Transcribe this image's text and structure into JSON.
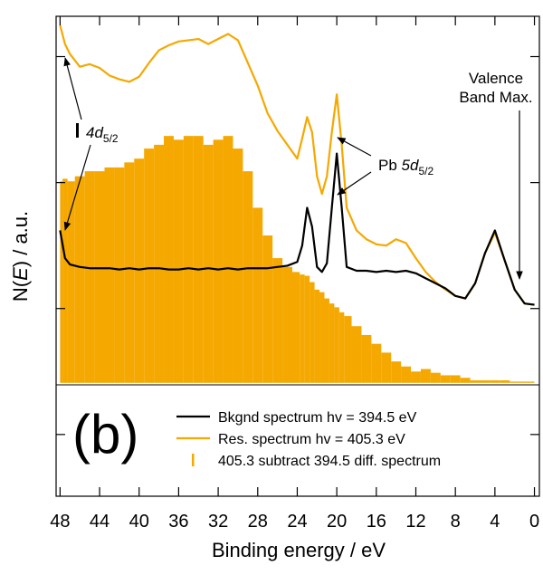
{
  "chart_data": {
    "type": "line",
    "xlabel": "Binding energy / eV",
    "ylabel": {
      "before": "N(",
      "italic": "E",
      "after": ") / a.u."
    },
    "panel_label": "(b)",
    "annotations": {
      "vbm": {
        "line1": "Valence",
        "line2": "Band Max."
      },
      "pb": {
        "text": "Pb",
        "italic": "5d",
        "sub": "5/2"
      },
      "d4": {
        "italic": "4d",
        "sub": "5/2"
      }
    },
    "xlim": [
      48.4,
      -0.5
    ],
    "xticks": [
      48,
      44,
      40,
      36,
      32,
      28,
      24,
      20,
      16,
      12,
      8,
      4,
      0
    ],
    "ylim": [
      -0.49,
      3.32
    ],
    "yticks": [
      0,
      1,
      2,
      3
    ],
    "y2lim": [
      -0.9,
      2.91
    ],
    "x": [
      48,
      47.5,
      47,
      46,
      45,
      44,
      43,
      42,
      41,
      40,
      39,
      38,
      37,
      36,
      35,
      34,
      33,
      32,
      31,
      30,
      29,
      28,
      27,
      26,
      25,
      24,
      23.5,
      23,
      22.5,
      22,
      21.5,
      21,
      20.5,
      20,
      19.5,
      19,
      18,
      17,
      16,
      15,
      14,
      13,
      12,
      11,
      10,
      9,
      8,
      7,
      6,
      5,
      4,
      3,
      2,
      1,
      0
    ],
    "series": [
      {
        "name": "Bkgnd spectrum hv = 394.5 eV",
        "color": "#000000",
        "kind": "line",
        "values": [
          1.62,
          1.4,
          1.35,
          1.33,
          1.32,
          1.32,
          1.32,
          1.31,
          1.32,
          1.31,
          1.32,
          1.32,
          1.31,
          1.31,
          1.32,
          1.31,
          1.32,
          1.31,
          1.32,
          1.31,
          1.32,
          1.32,
          1.32,
          1.33,
          1.34,
          1.37,
          1.5,
          1.8,
          1.65,
          1.33,
          1.29,
          1.36,
          1.8,
          2.23,
          1.8,
          1.33,
          1.3,
          1.3,
          1.29,
          1.3,
          1.29,
          1.3,
          1.28,
          1.24,
          1.2,
          1.16,
          1.1,
          1.08,
          1.2,
          1.44,
          1.62,
          1.38,
          1.15,
          1.04,
          1.03
        ]
      },
      {
        "name": "Res. spectrum hv = 405.3 eV",
        "color": "#f5a800",
        "kind": "line",
        "values": [
          3.25,
          3.1,
          3.02,
          2.92,
          2.94,
          2.91,
          2.85,
          2.82,
          2.8,
          2.84,
          2.95,
          3.05,
          3.09,
          3.12,
          3.13,
          3.14,
          3.1,
          3.14,
          3.18,
          3.13,
          2.95,
          2.77,
          2.55,
          2.41,
          2.3,
          2.19,
          2.35,
          2.52,
          2.4,
          2.05,
          1.91,
          2.05,
          2.4,
          2.7,
          2.3,
          1.8,
          1.62,
          1.55,
          1.51,
          1.5,
          1.55,
          1.52,
          1.4,
          1.29,
          1.21,
          1.15,
          1.1,
          1.08,
          1.2,
          1.44,
          1.6,
          1.38,
          1.15,
          1.04,
          1.03
        ]
      },
      {
        "name": "405.3 subtract 394.5 diff. spectrum",
        "color": "#f5a800",
        "kind": "bars",
        "axis": "y2",
        "values": [
          1.6,
          1.62,
          1.6,
          1.64,
          1.68,
          1.68,
          1.71,
          1.71,
          1.75,
          1.78,
          1.86,
          1.89,
          1.96,
          1.93,
          1.96,
          1.96,
          1.89,
          1.93,
          1.96,
          1.86,
          1.68,
          1.39,
          1.17,
          0.99,
          0.92,
          0.88,
          0.86,
          0.85,
          0.8,
          0.74,
          0.72,
          0.67,
          0.63,
          0.6,
          0.56,
          0.53,
          0.45,
          0.38,
          0.31,
          0.24,
          0.17,
          0.13,
          0.09,
          0.11,
          0.08,
          0.06,
          0.06,
          0.04,
          0.02,
          0.02,
          0.02,
          0.02,
          0.01,
          0.01,
          0.01
        ]
      }
    ]
  }
}
